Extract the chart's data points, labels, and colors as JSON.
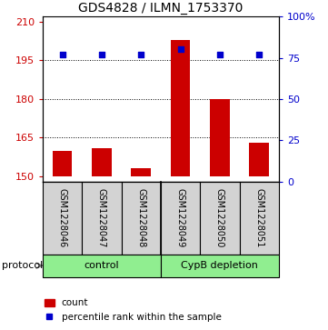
{
  "title": "GDS4828 / ILMN_1753370",
  "samples": [
    "GSM1228046",
    "GSM1228047",
    "GSM1228048",
    "GSM1228049",
    "GSM1228050",
    "GSM1228051"
  ],
  "counts": [
    160,
    161,
    153,
    203,
    180,
    163
  ],
  "percentile_ranks": [
    77,
    77,
    77,
    80,
    77,
    77
  ],
  "ylim_left": [
    148,
    212
  ],
  "ylim_right": [
    0,
    100
  ],
  "yticks_left": [
    150,
    165,
    180,
    195,
    210
  ],
  "yticks_right": [
    0,
    25,
    50,
    75,
    100
  ],
  "ytick_labels_right": [
    "0",
    "25",
    "50",
    "75",
    "100%"
  ],
  "bar_color": "#CC0000",
  "dot_color": "#0000CC",
  "bar_width": 0.5,
  "hgrid_values": [
    165,
    180,
    195
  ],
  "sample_box_color": "#D3D3D3",
  "group_box_color": "#90EE90",
  "baseline": 150,
  "group_labels": [
    "control",
    "CypB depletion"
  ],
  "group_ranges": [
    [
      0,
      3
    ],
    [
      3,
      6
    ]
  ],
  "protocol_label": "protocol",
  "legend_count_label": "count",
  "legend_pct_label": "percentile rank within the sample",
  "title_fontsize": 10,
  "tick_fontsize": 8,
  "sample_fontsize": 7,
  "group_fontsize": 8
}
